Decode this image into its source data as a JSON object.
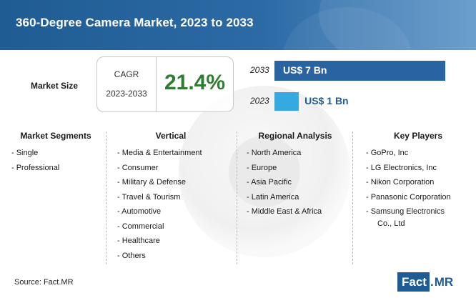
{
  "title": "360-Degree Camera Market, 2023 to 2033",
  "market_size_label": "Market Size",
  "cagr": {
    "label": "CAGR",
    "period": "2023-2033",
    "value": "21.4%"
  },
  "colors": {
    "header": "#1f5c93",
    "bar_2033": "#2a64a0",
    "bar_2023": "#36a9e1",
    "cagr_value": "#2e7d32"
  },
  "chart_data": {
    "type": "bar",
    "orientation": "horizontal",
    "categories": [
      "2033",
      "2023"
    ],
    "values": [
      7,
      1
    ],
    "value_labels": [
      "US$ 7 Bn",
      "US$ 1 Bn"
    ],
    "xlim": [
      0,
      7
    ]
  },
  "sections": [
    {
      "heading": "Market Segments",
      "items": [
        "- Single",
        "- Professional"
      ]
    },
    {
      "heading": "Vertical",
      "items": [
        "- Media & Entertainment",
        "- Consumer",
        "- Military & Defense",
        "- Travel & Tourism",
        "- Automotive",
        "- Commercial",
        "- Healthcare",
        "- Others"
      ]
    },
    {
      "heading": "Regional Analysis",
      "items": [
        "- North America",
        "- Europe",
        "- Asia Pacific",
        "- Latin America",
        "- Middle East & Africa"
      ]
    },
    {
      "heading": "Key Players",
      "items": [
        "- GoPro, Inc",
        "- LG Electronics, Inc",
        "- Nikon Corporation",
        "- Panasonic Corporation",
        "- Samsung Electronics",
        "  Co., Ltd"
      ]
    }
  ],
  "source": "Source: Fact.MR",
  "logo": {
    "part1": "Fact",
    "dot": ".",
    "part2": "MR"
  }
}
